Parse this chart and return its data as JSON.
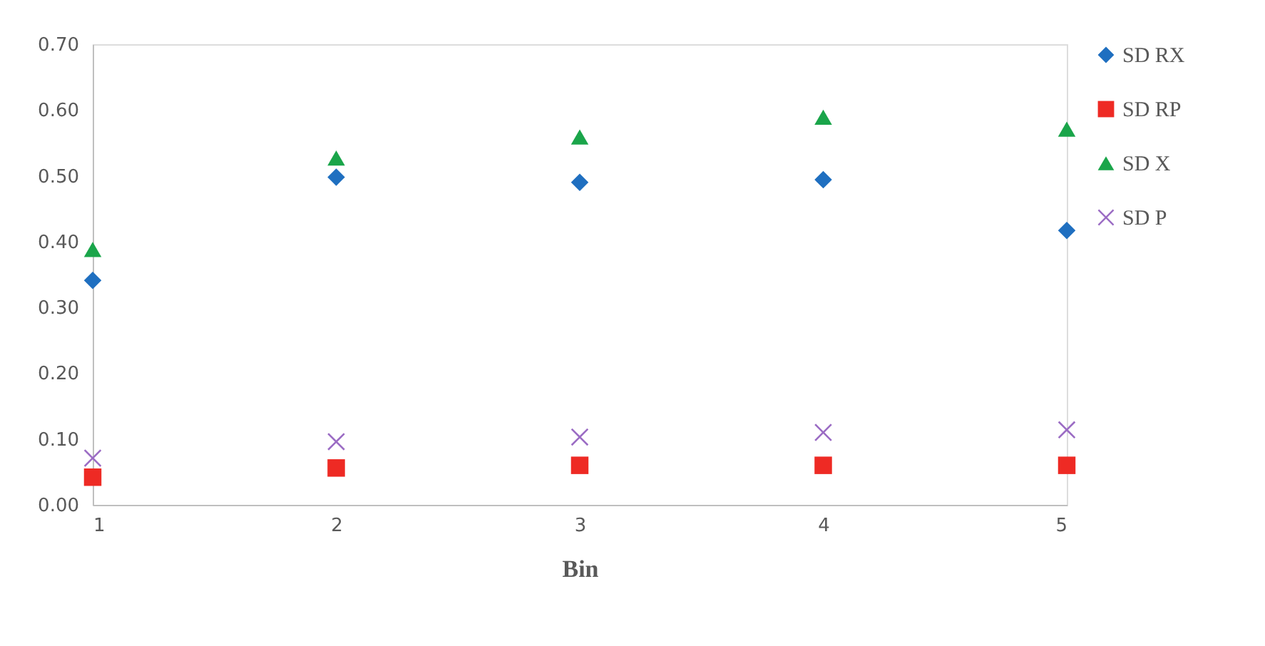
{
  "chart_data": {
    "type": "scatter",
    "xlabel": "Bin",
    "x": [
      1,
      2,
      3,
      4,
      5
    ],
    "xlim": [
      1,
      5
    ],
    "xticks": [
      1,
      2,
      3,
      4,
      5
    ],
    "ylim": [
      0,
      0.7
    ],
    "yticks": [
      {
        "value": 0,
        "label": "0.00"
      },
      {
        "value": 0.1,
        "label": "0.10"
      },
      {
        "value": 0.2,
        "label": "0.20"
      },
      {
        "value": 0.3,
        "label": "0.30"
      },
      {
        "value": 0.4,
        "label": "0.40"
      },
      {
        "value": 0.5,
        "label": "0.50"
      },
      {
        "value": 0.6,
        "label": "0.60"
      },
      {
        "value": 0.7,
        "label": "0.70"
      }
    ],
    "grid": false,
    "legend": "right",
    "series": [
      {
        "name": "SD RX",
        "color": "#1f6fc0",
        "marker": "diamond",
        "values": [
          0.341,
          0.498,
          0.49,
          0.494,
          0.417
        ]
      },
      {
        "name": "SD RP",
        "color": "#ee2a24",
        "marker": "square",
        "values": [
          0.042,
          0.056,
          0.06,
          0.06,
          0.06
        ]
      },
      {
        "name": "SD X",
        "color": "#1aa54a",
        "marker": "triangle",
        "values": [
          0.388,
          0.527,
          0.559,
          0.589,
          0.571
        ]
      },
      {
        "name": "SD P",
        "color": "#9b6cc4",
        "marker": "cross",
        "values": [
          0.071,
          0.096,
          0.103,
          0.11,
          0.114
        ]
      }
    ]
  }
}
